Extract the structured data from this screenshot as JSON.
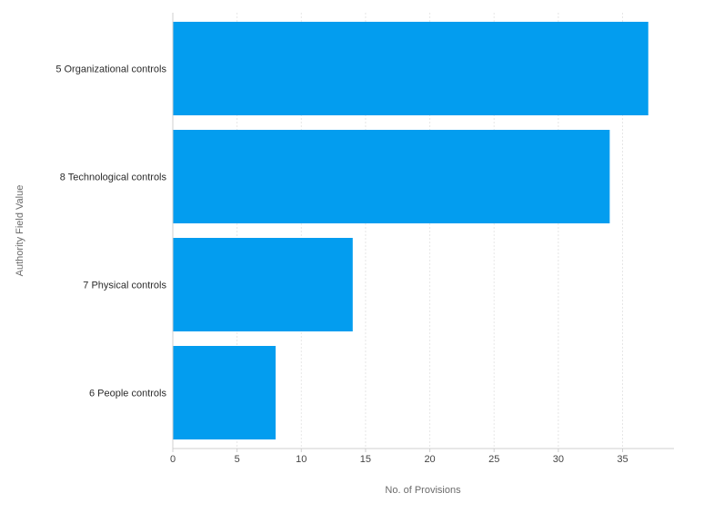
{
  "chart_data": {
    "type": "bar",
    "orientation": "horizontal",
    "categories": [
      "5 Organizational controls",
      "8 Technological controls",
      "7 Physical controls",
      "6 People controls"
    ],
    "values": [
      37,
      34,
      14,
      8
    ],
    "xlabel": "No. of Provisions",
    "ylabel": "Authority Field Value",
    "xlim": [
      0,
      39
    ],
    "xticks": [
      0,
      5,
      10,
      15,
      20,
      25,
      30,
      35
    ],
    "grid": true,
    "legend": "none"
  },
  "colors": {
    "bar": "#039def",
    "grid": "#e6e6e6",
    "axis": "#cfcfcf"
  }
}
